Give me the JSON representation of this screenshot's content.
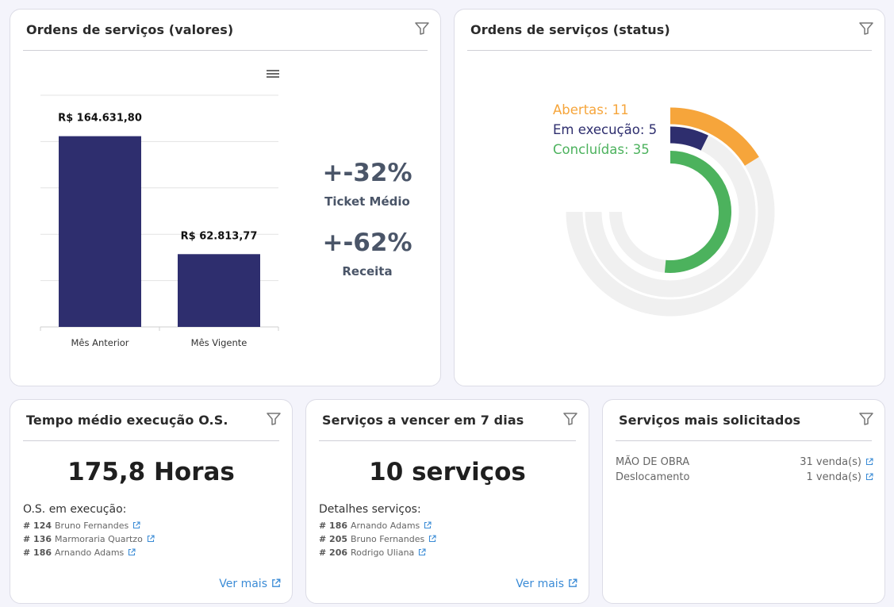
{
  "cards": {
    "valores": {
      "title": "Ordens de serviços (valores)",
      "kpis": [
        {
          "value": "+-32%",
          "label": "Ticket Médio"
        },
        {
          "value": "+-62%",
          "label": "Receita"
        }
      ]
    },
    "status": {
      "title": "Ordens de serviços (status)",
      "legend": [
        {
          "label": "Abertas: 11",
          "color": "#f6a53b"
        },
        {
          "label": "Em execução: 5",
          "color": "#2e2e6e"
        },
        {
          "label": "Concluídas: 35",
          "color": "#4cb25d"
        }
      ]
    },
    "tempo": {
      "title": "Tempo médio execução O.S.",
      "big": "175,8 Horas",
      "subtitle": "O.S. em execução:",
      "rows": [
        {
          "num": "# 124",
          "name": "Bruno Fernandes"
        },
        {
          "num": "# 136",
          "name": "Marmoraria Quartzo"
        },
        {
          "num": "# 186",
          "name": "Arnando Adams"
        }
      ],
      "more": "Ver mais"
    },
    "vencer": {
      "title": "Serviços a vencer em 7 dias",
      "big": "10 serviços",
      "subtitle": "Detalhes serviços:",
      "rows": [
        {
          "num": "# 186",
          "name": "Arnando Adams"
        },
        {
          "num": "# 205",
          "name": "Bruno Fernandes"
        },
        {
          "num": "# 206",
          "name": "Rodrigo Uliana"
        }
      ],
      "more": "Ver mais"
    },
    "solicitados": {
      "title": "Serviços mais solicitados",
      "rows": [
        {
          "name": "MÃO DE OBRA",
          "value": "31 venda(s)"
        },
        {
          "name": "Deslocamento",
          "value": "1 venda(s)"
        }
      ]
    }
  },
  "colors": {
    "bar": "#2e2e6e",
    "link": "#3a8bd6",
    "track": "#f0f0f0"
  },
  "chart_data": [
    {
      "type": "bar",
      "title": "",
      "categories": [
        "Mês Anterior",
        "Mês Vigente"
      ],
      "values": [
        164631.8,
        62813.77
      ],
      "data_labels": [
        "R$ 164.631,80",
        "R$ 62.813,77"
      ],
      "ylim": [
        0,
        200000
      ],
      "grid": true,
      "color": "#2e2e6e"
    },
    {
      "type": "radialBar",
      "categories": [
        "Abertas",
        "Em execução",
        "Concluídas"
      ],
      "values": [
        11,
        5,
        35
      ],
      "max": 51,
      "colors": [
        "#f6a53b",
        "#2e2e6e",
        "#4cb25d"
      ]
    }
  ]
}
